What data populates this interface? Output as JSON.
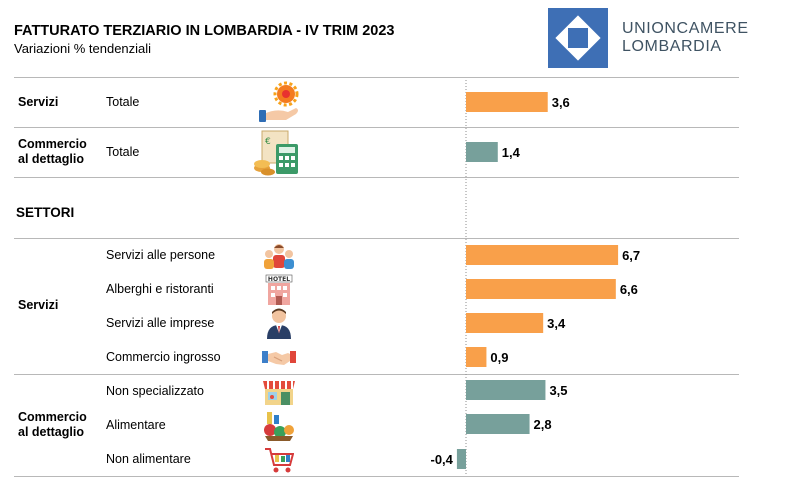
{
  "header": {
    "title": "FATTURATO TERZIARIO IN LOMBARDIA - IV TRIM 2023",
    "subtitle": "Variazioni % tendenziali"
  },
  "logo": {
    "line1": "UNIONCAMERE",
    "line2": "LOMBARDIA",
    "color": "#3e6fb5"
  },
  "sections": {
    "servizi_group": "Servizi",
    "commercio_group_line1": "Commercio",
    "commercio_group_line2": "al dettaglio",
    "settori_label": "SETTORI",
    "servizi_group_2": "Servizi",
    "commercio_group_2_line1": "Commercio",
    "commercio_group_2_line2": "al dettaglio"
  },
  "chart_data": {
    "type": "bar",
    "orientation": "horizontal",
    "title": "FATTURATO TERZIARIO IN LOMBARDIA - IV TRIM 2023",
    "subtitle": "Variazioni % tendenziali",
    "zero_line": "dotted",
    "colors": {
      "servizi": "#f9a04a",
      "commercio": "#77a09b"
    },
    "rows": [
      {
        "group": "Servizi",
        "category": "Totale",
        "value": 3.6,
        "label": "3,6",
        "color_key": "servizi",
        "icon": "gear-hand-icon"
      },
      {
        "group": "Commercio al dettaglio",
        "category": "Totale",
        "value": 1.4,
        "label": "1,4",
        "color_key": "commercio",
        "icon": "calculator-coins-icon"
      },
      {
        "group": "Servizi",
        "category": "Servizi alle persone",
        "value": 6.7,
        "label": "6,7",
        "color_key": "servizi",
        "icon": "people-icon"
      },
      {
        "group": "Servizi",
        "category": "Alberghi e ristoranti",
        "value": 6.6,
        "label": "6,6",
        "color_key": "servizi",
        "icon": "hotel-icon"
      },
      {
        "group": "Servizi",
        "category": "Servizi alle imprese",
        "value": 3.4,
        "label": "3,4",
        "color_key": "servizi",
        "icon": "businessman-icon"
      },
      {
        "group": "Servizi",
        "category": "Commercio ingrosso",
        "value": 0.9,
        "label": "0,9",
        "color_key": "servizi",
        "icon": "handshake-icon"
      },
      {
        "group": "Commercio al dettaglio",
        "category": "Non specializzato",
        "value": 3.5,
        "label": "3,5",
        "color_key": "commercio",
        "icon": "shop-icon"
      },
      {
        "group": "Commercio al dettaglio",
        "category": "Alimentare",
        "value": 2.8,
        "label": "2,8",
        "color_key": "commercio",
        "icon": "groceries-icon"
      },
      {
        "group": "Commercio al dettaglio",
        "category": "Non alimentare",
        "value": -0.4,
        "label": "-0,4",
        "color_key": "commercio",
        "icon": "shopping-cart-icon"
      }
    ]
  }
}
